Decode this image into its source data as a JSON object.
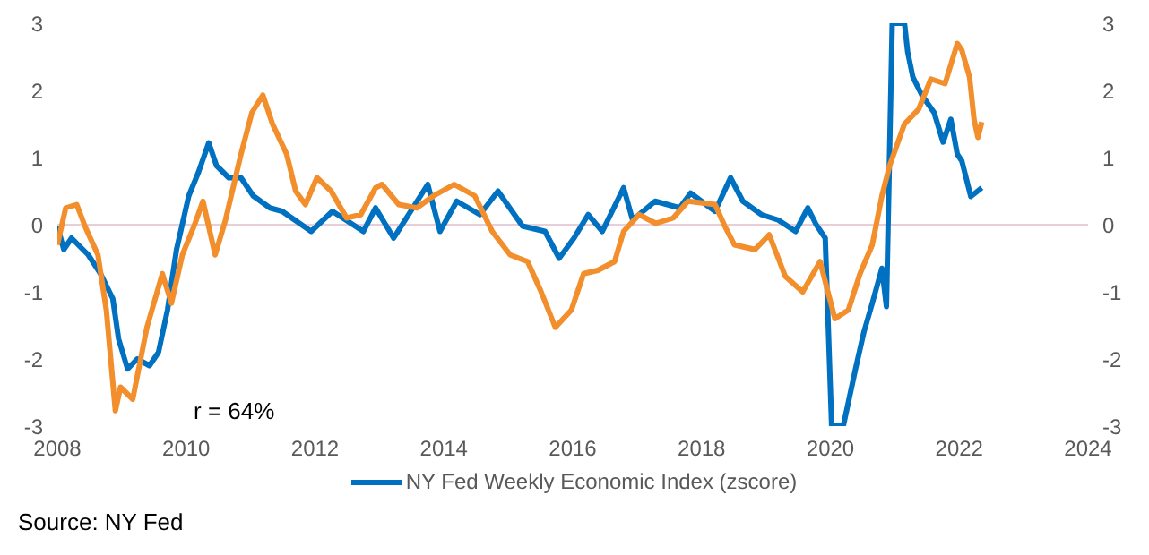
{
  "chart_data": {
    "type": "line",
    "series": [
      {
        "name": "NY Fed Weekly Economic Index (zscore)",
        "color": "#0070c0",
        "x": [
          2008.0,
          2008.1,
          2008.22,
          2008.48,
          2008.67,
          2008.86,
          2008.95,
          2009.09,
          2009.24,
          2009.43,
          2009.57,
          2009.71,
          2009.85,
          2010.04,
          2010.19,
          2010.35,
          2010.47,
          2010.66,
          2010.85,
          2011.04,
          2011.3,
          2011.49,
          2011.94,
          2012.27,
          2012.75,
          2012.94,
          2013.22,
          2013.75,
          2013.94,
          2014.2,
          2014.56,
          2014.84,
          2015.22,
          2015.57,
          2015.79,
          2016.02,
          2016.24,
          2016.46,
          2016.79,
          2016.93,
          2017.28,
          2017.66,
          2017.83,
          2018.21,
          2018.45,
          2018.64,
          2018.93,
          2019.19,
          2019.46,
          2019.65,
          2019.78,
          2019.92,
          2020.02,
          2020.2,
          2020.39,
          2020.52,
          2020.65,
          2020.8,
          2020.87,
          2020.96,
          2021.15,
          2021.2,
          2021.28,
          2021.42,
          2021.61,
          2021.75,
          2021.87,
          2021.97,
          2022.04,
          2022.18,
          2022.35
        ],
        "values": [
          -0.02,
          -0.37,
          -0.2,
          -0.45,
          -0.73,
          -1.1,
          -1.7,
          -2.15,
          -2.0,
          -2.1,
          -1.9,
          -1.27,
          -0.37,
          0.43,
          0.78,
          1.22,
          0.88,
          0.7,
          0.7,
          0.43,
          0.25,
          0.2,
          -0.1,
          0.2,
          -0.1,
          0.25,
          -0.2,
          0.6,
          -0.1,
          0.35,
          0.15,
          0.5,
          -0.02,
          -0.1,
          -0.5,
          -0.2,
          0.15,
          -0.1,
          0.55,
          0.07,
          0.35,
          0.25,
          0.47,
          0.2,
          0.7,
          0.35,
          0.15,
          0.07,
          -0.1,
          0.25,
          0,
          -0.2,
          -3,
          -3,
          -2.15,
          -1.6,
          -1.17,
          -0.65,
          -1.22,
          3,
          3,
          2.57,
          2.2,
          1.93,
          1.67,
          1.23,
          1.57,
          1.05,
          0.95,
          0.42,
          0.55
        ]
      },
      {
        "color": "#f28e2b",
        "x": [
          2008.0,
          2008.13,
          2008.3,
          2008.44,
          2008.63,
          2008.76,
          2008.9,
          2008.98,
          2009.17,
          2009.39,
          2009.63,
          2009.77,
          2009.94,
          2010.13,
          2010.26,
          2010.45,
          2010.61,
          2010.85,
          2011.02,
          2011.19,
          2011.34,
          2011.56,
          2011.7,
          2011.85,
          2012.03,
          2012.25,
          2012.49,
          2012.71,
          2012.94,
          2013.04,
          2013.3,
          2013.58,
          2013.84,
          2014.16,
          2014.48,
          2014.75,
          2015.03,
          2015.3,
          2015.51,
          2015.73,
          2015.98,
          2016.17,
          2016.39,
          2016.65,
          2016.79,
          2017.03,
          2017.29,
          2017.56,
          2017.79,
          2018.21,
          2018.36,
          2018.51,
          2018.83,
          2019.05,
          2019.3,
          2019.57,
          2019.84,
          2020.07,
          2020.28,
          2020.46,
          2020.65,
          2020.8,
          2020.92,
          2021.15,
          2021.37,
          2021.56,
          2021.78,
          2021.97,
          2022.04,
          2022.16,
          2022.23,
          2022.29,
          2022.35
        ],
        "values": [
          -0.3,
          0.25,
          0.3,
          -0.05,
          -0.45,
          -1.27,
          -2.77,
          -2.42,
          -2.6,
          -1.53,
          -0.73,
          -1.17,
          -0.45,
          0,
          0.35,
          -0.45,
          0.07,
          1.05,
          1.67,
          1.93,
          1.5,
          1.05,
          0.5,
          0.3,
          0.7,
          0.5,
          0.1,
          0.15,
          0.55,
          0.6,
          0.3,
          0.25,
          0.43,
          0.6,
          0.43,
          -0.1,
          -0.45,
          -0.55,
          -1.0,
          -1.53,
          -1.27,
          -0.73,
          -0.68,
          -0.55,
          -0.1,
          0.15,
          0.02,
          0.1,
          0.35,
          0.3,
          -0.02,
          -0.3,
          -0.37,
          -0.15,
          -0.77,
          -1.0,
          -0.55,
          -1.4,
          -1.27,
          -0.73,
          -0.3,
          0.43,
          0.88,
          1.5,
          1.72,
          2.17,
          2.1,
          2.7,
          2.6,
          2.2,
          1.57,
          1.3,
          1.53
        ]
      }
    ],
    "xlim": [
      2008,
      2024
    ],
    "xticks": [
      2008,
      2010,
      2012,
      2014,
      2016,
      2018,
      2020,
      2022,
      2024
    ],
    "ylim": [
      -3,
      3
    ],
    "yticks": [
      -3,
      -2,
      -1,
      0,
      1,
      2,
      3
    ],
    "y2lim": [
      -3,
      3
    ],
    "y2ticks": [
      -3,
      -2,
      -1,
      0,
      1,
      2,
      3
    ],
    "ref_lines": [
      {
        "axis": "y",
        "value": 0,
        "color": "#e6cfd8"
      }
    ],
    "annotations": [
      "r =  64%",
      "Source: NY Fed"
    ],
    "legend": "bottom",
    "grid": false,
    "marker": "none",
    "line_style": "solid"
  }
}
